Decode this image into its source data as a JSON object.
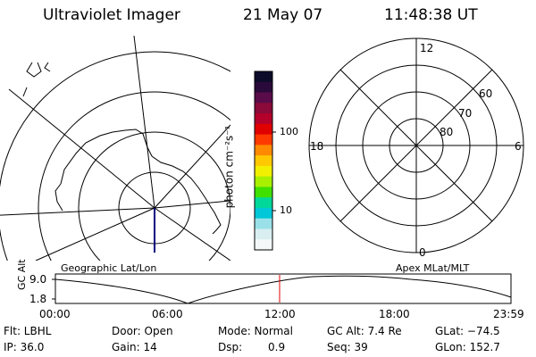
{
  "header": {
    "instrument": "Ultraviolet Imager",
    "date": "21 May 07",
    "time": "11:48:38 UT"
  },
  "geographic_panel": {
    "caption": "Geographic Lat/Lon"
  },
  "colorbar": {
    "label": "photon cm⁻²s⁻¹",
    "ticks": [
      "100",
      "10"
    ],
    "colors": [
      "#0c0c2a",
      "#2a0a3a",
      "#5a0c4a",
      "#8a0a3a",
      "#b4002a",
      "#e00000",
      "#ff3a00",
      "#ff8a00",
      "#ffc800",
      "#f0f000",
      "#a8f000",
      "#40e000",
      "#00d89a",
      "#00c8d8",
      "#9ae0e8",
      "#d8eef0",
      "#f4f8f8"
    ]
  },
  "polar_panel": {
    "caption": "Apex MLat/MLT",
    "mlt_labels": {
      "top": "12",
      "bottom": "0",
      "left": "18",
      "right": "6"
    },
    "lat_labels": [
      "60",
      "70",
      "80"
    ]
  },
  "timeline": {
    "ylabel": "GC Alt",
    "y_ticks": [
      "9.0",
      "1.8"
    ],
    "x_ticks": [
      "00:00",
      "06:00",
      "12:00",
      "18:00",
      "23:59"
    ],
    "current_time_marker": "11:48",
    "marker_color": "#e00000"
  },
  "status": {
    "row1": {
      "flt": "Flt: LBHL",
      "door": "Door: Open",
      "mode": "Mode: Normal",
      "gc_alt": "GC Alt: 7.4 Re",
      "glat": "GLat: −74.5"
    },
    "row2": {
      "ip": "IP: 36.0",
      "gain": "Gain: 14",
      "dsp_label": "Dsp:",
      "dsp_value": "0.9",
      "seq": "Seq: 39",
      "glon": "GLon: 152.7"
    }
  }
}
